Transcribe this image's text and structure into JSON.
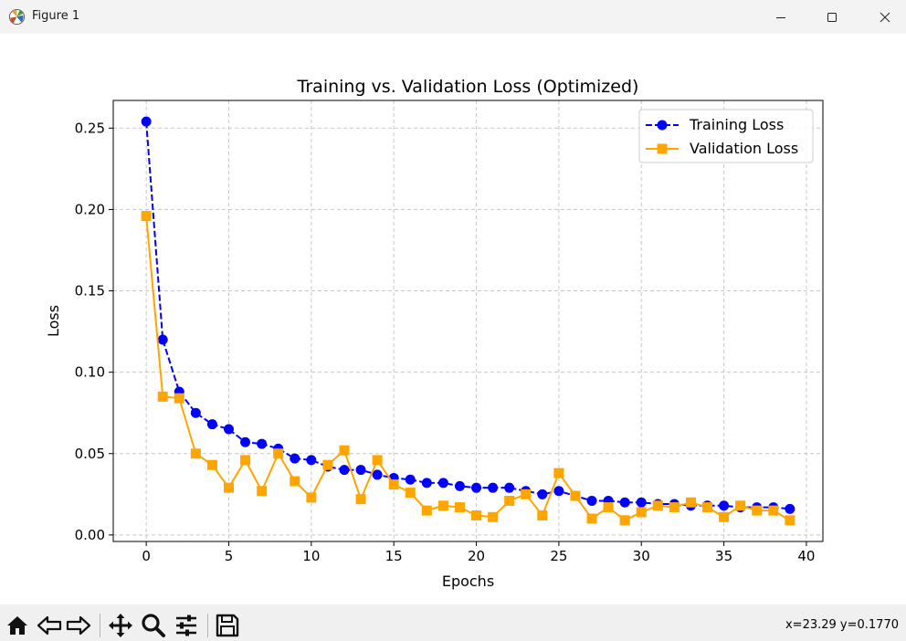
{
  "window": {
    "title": "Figure 1",
    "icons": {
      "app": "matplotlib-icon",
      "minimize": "minimize-icon",
      "maximize": "maximize-icon",
      "close": "close-icon"
    }
  },
  "toolbar": {
    "buttons": [
      "home-icon",
      "back-arrow-icon",
      "forward-arrow-icon",
      "pan-icon",
      "zoom-icon",
      "configure-subplots-icon",
      "save-icon"
    ],
    "coords": "x=23.29 y=0.1770"
  },
  "chart_data": {
    "type": "line",
    "title": "Training vs. Validation Loss (Optimized)",
    "xlabel": "Epochs",
    "ylabel": "Loss",
    "xlim": [
      -2,
      41
    ],
    "ylim": [
      -0.004,
      0.267
    ],
    "xticks": [
      0,
      5,
      10,
      15,
      20,
      25,
      30,
      35,
      40
    ],
    "xtick_labels": [
      "0",
      "5",
      "10",
      "15",
      "20",
      "25",
      "30",
      "35",
      "40"
    ],
    "yticks": [
      0.0,
      0.05,
      0.1,
      0.15,
      0.2,
      0.25
    ],
    "ytick_labels": [
      "0.00",
      "0.05",
      "0.10",
      "0.15",
      "0.20",
      "0.25"
    ],
    "grid": true,
    "legend_position": "upper-right",
    "x": [
      0,
      1,
      2,
      3,
      4,
      5,
      6,
      7,
      8,
      9,
      10,
      11,
      12,
      13,
      14,
      15,
      16,
      17,
      18,
      19,
      20,
      21,
      22,
      23,
      24,
      25,
      26,
      27,
      28,
      29,
      30,
      31,
      32,
      33,
      34,
      35,
      36,
      37,
      38,
      39
    ],
    "series": [
      {
        "name": "Training Loss",
        "color": "#0000ff",
        "marker": "circle",
        "linestyle": "dashed",
        "values": [
          0.254,
          0.12,
          0.088,
          0.075,
          0.068,
          0.065,
          0.057,
          0.056,
          0.053,
          0.047,
          0.046,
          0.042,
          0.04,
          0.04,
          0.037,
          0.035,
          0.034,
          0.032,
          0.032,
          0.03,
          0.029,
          0.029,
          0.029,
          0.027,
          0.025,
          0.027,
          0.024,
          0.021,
          0.021,
          0.02,
          0.02,
          0.019,
          0.019,
          0.018,
          0.018,
          0.018,
          0.017,
          0.017,
          0.017,
          0.016
        ]
      },
      {
        "name": "Validation Loss",
        "color": "#ffa500",
        "marker": "square",
        "linestyle": "solid",
        "values": [
          0.196,
          0.085,
          0.084,
          0.05,
          0.043,
          0.029,
          0.046,
          0.027,
          0.05,
          0.033,
          0.023,
          0.043,
          0.052,
          0.022,
          0.046,
          0.031,
          0.026,
          0.015,
          0.018,
          0.017,
          0.012,
          0.011,
          0.021,
          0.025,
          0.012,
          0.038,
          0.024,
          0.01,
          0.017,
          0.009,
          0.014,
          0.018,
          0.017,
          0.02,
          0.017,
          0.011,
          0.018,
          0.015,
          0.015,
          0.009
        ]
      }
    ]
  }
}
